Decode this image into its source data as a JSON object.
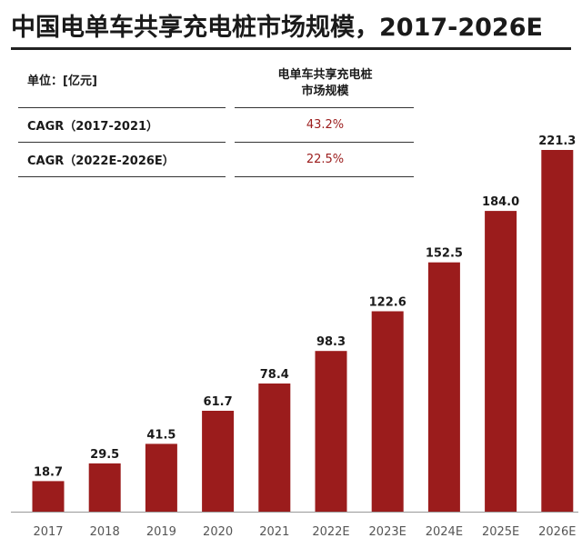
{
  "title": "中国电单车共享充电桩市场规模，2017-2026E",
  "table": {
    "unit_label": "单位：[亿元]",
    "column_header_line1": "电单车共享充电桩",
    "column_header_line2": "市场规模",
    "rows": [
      {
        "label": "CAGR（2017-2021）",
        "value": "43.2%"
      },
      {
        "label": "CAGR（2022E-2026E）",
        "value": "22.5%"
      }
    ]
  },
  "colors": {
    "bar": "#9b1c1c",
    "cagr_value": "#9b1c1c"
  },
  "chart_data": {
    "type": "bar",
    "title": "中国电单车共享充电桩市场规模，2017-2026E",
    "xlabel": "",
    "ylabel": "",
    "unit": "亿元",
    "categories": [
      "2017",
      "2018",
      "2019",
      "2020",
      "2021",
      "2022E",
      "2023E",
      "2024E",
      "2025E",
      "2026E"
    ],
    "values": [
      18.7,
      29.5,
      41.5,
      61.7,
      78.4,
      98.3,
      122.6,
      152.5,
      184.0,
      221.3
    ],
    "value_labels": [
      "18.7",
      "29.5",
      "41.5",
      "61.7",
      "78.4",
      "98.3",
      "122.6",
      "152.5",
      "184.0",
      "221.3"
    ],
    "ylim": [
      0,
      221.3
    ],
    "grid": false,
    "legend": "none"
  }
}
